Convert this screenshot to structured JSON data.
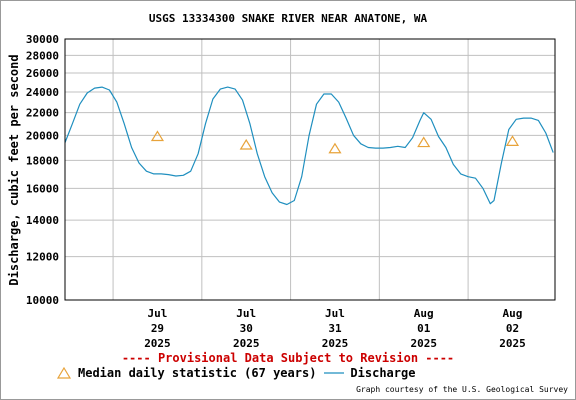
{
  "chart_data": {
    "type": "line",
    "title": "USGS 13334300 SNAKE RIVER NEAR ANATONE, WA",
    "ylabel": "Discharge, cubic feet per second",
    "y_scale": "log",
    "ylim": [
      10000,
      30000
    ],
    "y_ticks": [
      "30000",
      "28000",
      "26000",
      "24000",
      "22000",
      "20000",
      "18000",
      "16000",
      "14000",
      "12000",
      "10000"
    ],
    "x_ticks": [
      {
        "line1": "Jul",
        "line2": "29",
        "line3": "2025"
      },
      {
        "line1": "Jul",
        "line2": "30",
        "line3": "2025"
      },
      {
        "line1": "Jul",
        "line2": "31",
        "line3": "2025"
      },
      {
        "line1": "Aug",
        "line2": "01",
        "line3": "2025"
      },
      {
        "line1": "Aug",
        "line2": "02",
        "line3": "2025"
      }
    ],
    "xlim_days": [
      "2025-07-28 11:00",
      "2025-08-02 23:30"
    ],
    "grid": true,
    "series": [
      {
        "name": "Discharge",
        "color": "#1f8fbf",
        "points": [
          [
            "2025-07-28 11:00",
            19400
          ],
          [
            "2025-07-28 13:00",
            21000
          ],
          [
            "2025-07-28 15:00",
            22800
          ],
          [
            "2025-07-28 17:00",
            23900
          ],
          [
            "2025-07-28 19:00",
            24400
          ],
          [
            "2025-07-28 21:00",
            24500
          ],
          [
            "2025-07-28 23:00",
            24200
          ],
          [
            "2025-07-29 01:00",
            23000
          ],
          [
            "2025-07-29 03:00",
            21000
          ],
          [
            "2025-07-29 05:00",
            19000
          ],
          [
            "2025-07-29 07:00",
            17800
          ],
          [
            "2025-07-29 09:00",
            17200
          ],
          [
            "2025-07-29 11:00",
            17000
          ],
          [
            "2025-07-29 13:00",
            17000
          ],
          [
            "2025-07-29 15:00",
            16950
          ],
          [
            "2025-07-29 17:00",
            16850
          ],
          [
            "2025-07-29 19:00",
            16900
          ],
          [
            "2025-07-29 21:00",
            17200
          ],
          [
            "2025-07-29 23:00",
            18500
          ],
          [
            "2025-07-30 01:00",
            21000
          ],
          [
            "2025-07-30 03:00",
            23300
          ],
          [
            "2025-07-30 05:00",
            24300
          ],
          [
            "2025-07-30 07:00",
            24500
          ],
          [
            "2025-07-30 09:00",
            24300
          ],
          [
            "2025-07-30 11:00",
            23200
          ],
          [
            "2025-07-30 13:00",
            21000
          ],
          [
            "2025-07-30 15:00",
            18500
          ],
          [
            "2025-07-30 17:00",
            16800
          ],
          [
            "2025-07-30 19:00",
            15700
          ],
          [
            "2025-07-30 21:00",
            15100
          ],
          [
            "2025-07-30 23:00",
            14950
          ],
          [
            "2025-07-31 01:00",
            15200
          ],
          [
            "2025-07-31 03:00",
            16800
          ],
          [
            "2025-07-31 05:00",
            20000
          ],
          [
            "2025-07-31 07:00",
            22800
          ],
          [
            "2025-07-31 09:00",
            23800
          ],
          [
            "2025-07-31 11:00",
            23800
          ],
          [
            "2025-07-31 13:00",
            23000
          ],
          [
            "2025-07-31 15:00",
            21500
          ],
          [
            "2025-07-31 17:00",
            20000
          ],
          [
            "2025-07-31 19:00",
            19300
          ],
          [
            "2025-07-31 21:00",
            19000
          ],
          [
            "2025-07-31 23:00",
            18950
          ],
          [
            "2025-08-01 01:00",
            18950
          ],
          [
            "2025-08-01 03:00",
            19000
          ],
          [
            "2025-08-01 05:00",
            19100
          ],
          [
            "2025-08-01 07:00",
            19000
          ],
          [
            "2025-08-01 09:00",
            19800
          ],
          [
            "2025-08-01 11:00",
            21300
          ],
          [
            "2025-08-01 12:00",
            22000
          ],
          [
            "2025-08-01 14:00",
            21400
          ],
          [
            "2025-08-01 16:00",
            19900
          ],
          [
            "2025-08-01 18:00",
            19000
          ],
          [
            "2025-08-01 20:00",
            17700
          ],
          [
            "2025-08-01 22:00",
            17000
          ],
          [
            "2025-08-02 00:00",
            16800
          ],
          [
            "2025-08-02 02:00",
            16700
          ],
          [
            "2025-08-02 04:00",
            16000
          ],
          [
            "2025-08-02 06:00",
            15000
          ],
          [
            "2025-08-02 07:00",
            15200
          ],
          [
            "2025-08-02 09:00",
            17800
          ],
          [
            "2025-08-02 11:00",
            20500
          ],
          [
            "2025-08-02 13:00",
            21400
          ],
          [
            "2025-08-02 15:00",
            21500
          ],
          [
            "2025-08-02 17:00",
            21500
          ],
          [
            "2025-08-02 19:00",
            21300
          ],
          [
            "2025-08-02 21:00",
            20200
          ],
          [
            "2025-08-02 23:00",
            18600
          ]
        ]
      }
    ],
    "median": {
      "name": "Median daily statistic (67 years)",
      "color": "#e8a33a",
      "points": [
        [
          "2025-07-29 12:00",
          19900
        ],
        [
          "2025-07-30 12:00",
          19200
        ],
        [
          "2025-07-31 12:00",
          18900
        ],
        [
          "2025-08-01 12:00",
          19400
        ],
        [
          "2025-08-02 12:00",
          19500
        ]
      ]
    },
    "legend_placement": "bottom-left"
  },
  "notice": "---- Provisional Data Subject to Revision ----",
  "legend": {
    "median_label": "Median daily statistic (67 years)",
    "discharge_label": "Discharge"
  },
  "credit": "Graph courtesy of the U.S. Geological Survey",
  "colors": {
    "grid": "#c0c0c0",
    "discharge": "#1f8fbf",
    "median": "#e8a33a",
    "notice": "#cc0000"
  }
}
